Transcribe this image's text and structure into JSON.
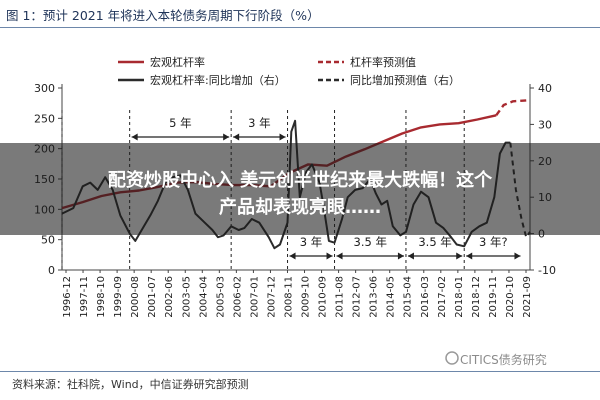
{
  "figure": {
    "title": "图 1：预计 2021 年将进入本轮债务周期下行阶段（%）",
    "source": "资料来源：社科院，Wind，中信证券研究部预测",
    "watermark": "CITICS债务研究",
    "colors": {
      "leverage": "#a82a30",
      "change": "#2b2b2b",
      "band": "#1a1a1a"
    }
  },
  "overlay": {
    "headline_line1": "配资炒股中心入 美元创半世纪来最大跌幅！这个",
    "headline_line2": "产品却表现亮眼……"
  },
  "chart_data": {
    "type": "line",
    "title": "",
    "x_tick_labels": [
      "1996-12",
      "1997-11",
      "1998-10",
      "1999-09",
      "2000-08",
      "2001-07",
      "2002-06",
      "2003-05",
      "2004-04",
      "2005-03",
      "2006-02",
      "2007-01",
      "2007-12",
      "2008-11",
      "2009-10",
      "2010-09",
      "2011-08",
      "2012-07",
      "2013-06",
      "2014-05",
      "2015-04",
      "2016-03",
      "2017-02",
      "2018-01",
      "2018-12",
      "2019-11",
      "2020-10",
      "2021-09"
    ],
    "y_left": {
      "ticks": [
        0,
        50,
        100,
        150,
        200,
        250,
        300
      ],
      "range": [
        0,
        300
      ]
    },
    "y_right": {
      "ticks": [
        -10,
        0,
        10,
        20,
        30,
        40
      ],
      "range": [
        -10,
        40
      ]
    },
    "legend": {
      "placement": "top",
      "entries": [
        {
          "key": "leverage",
          "label": "宏观杠杆率",
          "style": "solid",
          "color": "#a82a30"
        },
        {
          "key": "leverage_forecast",
          "label": "杠杆率预测值",
          "style": "dashed",
          "color": "#a82a30"
        },
        {
          "key": "change",
          "label": "宏观杠杆率:同比增加（右）",
          "style": "solid",
          "color": "#2b2b2b"
        },
        {
          "key": "change_forecast",
          "label": "同比增加预测值（右）",
          "style": "dashed",
          "color": "#2b2b2b"
        }
      ]
    },
    "series": [
      {
        "key": "leverage",
        "name": "宏观杠杆率",
        "axis": "left",
        "points": [
          [
            1996.9,
            102
          ],
          [
            1998.0,
            112
          ],
          [
            1999.0,
            122
          ],
          [
            2000.0,
            128
          ],
          [
            2001.0,
            131
          ],
          [
            2002.0,
            137
          ],
          [
            2003.0,
            144
          ],
          [
            2004.0,
            145
          ],
          [
            2005.0,
            142
          ],
          [
            2006.0,
            140
          ],
          [
            2007.0,
            140
          ],
          [
            2008.0,
            138
          ],
          [
            2009.0,
            160
          ],
          [
            2010.0,
            174
          ],
          [
            2011.0,
            172
          ],
          [
            2012.0,
            187
          ],
          [
            2013.0,
            199
          ],
          [
            2014.0,
            212
          ],
          [
            2015.0,
            225
          ],
          [
            2016.0,
            235
          ],
          [
            2017.0,
            240
          ],
          [
            2018.0,
            242
          ],
          [
            2019.0,
            248
          ],
          [
            2020.0,
            255
          ]
        ]
      },
      {
        "key": "leverage_forecast",
        "name": "杠杆率预测值",
        "axis": "left",
        "points": [
          [
            2020.0,
            255
          ],
          [
            2020.4,
            272
          ],
          [
            2020.9,
            278
          ],
          [
            2021.4,
            279
          ],
          [
            2021.8,
            280
          ]
        ]
      },
      {
        "key": "change",
        "name": "宏观杠杆率:同比增加",
        "axis": "right",
        "points": [
          [
            1996.9,
            5.5
          ],
          [
            1997.5,
            7
          ],
          [
            1998.0,
            13
          ],
          [
            1998.4,
            14
          ],
          [
            1998.8,
            12
          ],
          [
            1999.2,
            15.5
          ],
          [
            1999.6,
            12
          ],
          [
            2000.0,
            5
          ],
          [
            2000.5,
            0
          ],
          [
            2000.8,
            -2
          ],
          [
            2001.2,
            1.5
          ],
          [
            2001.6,
            5
          ],
          [
            2002.0,
            9
          ],
          [
            2002.4,
            14
          ],
          [
            2002.8,
            15.5
          ],
          [
            2003.2,
            16
          ],
          [
            2003.6,
            12
          ],
          [
            2004.0,
            5.5
          ],
          [
            2004.5,
            3
          ],
          [
            2004.9,
            1
          ],
          [
            2005.2,
            -1
          ],
          [
            2005.5,
            -0.5
          ],
          [
            2005.9,
            2
          ],
          [
            2006.3,
            1
          ],
          [
            2006.6,
            1.5
          ],
          [
            2007.0,
            4
          ],
          [
            2007.4,
            3
          ],
          [
            2007.9,
            -1
          ],
          [
            2008.2,
            -4
          ],
          [
            2008.5,
            -3
          ],
          [
            2008.9,
            3
          ],
          [
            2009.1,
            28
          ],
          [
            2009.3,
            31
          ],
          [
            2009.55,
            10
          ],
          [
            2009.9,
            17
          ],
          [
            2010.2,
            19
          ],
          [
            2010.6,
            14
          ],
          [
            2010.8,
            8
          ],
          [
            2011.1,
            -2
          ],
          [
            2011.4,
            -2.5
          ],
          [
            2011.8,
            4
          ],
          [
            2012.1,
            10
          ],
          [
            2012.5,
            12
          ],
          [
            2012.9,
            12.5
          ],
          [
            2013.3,
            15
          ],
          [
            2013.6,
            11
          ],
          [
            2013.9,
            8
          ],
          [
            2014.2,
            9
          ],
          [
            2014.5,
            2
          ],
          [
            2014.9,
            -0.5
          ],
          [
            2015.2,
            0.5
          ],
          [
            2015.6,
            8
          ],
          [
            2016.0,
            11.5
          ],
          [
            2016.4,
            10
          ],
          [
            2016.8,
            3
          ],
          [
            2017.2,
            1.5
          ],
          [
            2017.6,
            -1
          ],
          [
            2017.9,
            -3
          ],
          [
            2018.3,
            -3.5
          ],
          [
            2018.7,
            0.5
          ],
          [
            2019.1,
            2
          ],
          [
            2019.5,
            3
          ],
          [
            2019.9,
            10
          ],
          [
            2020.2,
            22
          ],
          [
            2020.5,
            25
          ],
          [
            2020.75,
            25
          ]
        ]
      },
      {
        "key": "change_forecast",
        "name": "同比增加预测值",
        "axis": "right",
        "points": [
          [
            2020.75,
            25
          ],
          [
            2021.05,
            12
          ],
          [
            2021.35,
            4
          ],
          [
            2021.6,
            -1
          ],
          [
            2021.8,
            0.5
          ]
        ]
      }
    ],
    "vlines": [
      1996.9,
      2000.5,
      2005.9,
      2008.9,
      2011.4,
      2015.2,
      2018.3
    ],
    "annotations": [
      {
        "text": "5 年",
        "from": 2000.5,
        "to": 2005.9,
        "level": "upper"
      },
      {
        "text": "3 年",
        "from": 2005.9,
        "to": 2008.9,
        "level": "upper"
      },
      {
        "text": "3 年",
        "from": 2008.9,
        "to": 2011.4,
        "level": "lower"
      },
      {
        "text": "3.5 年",
        "from": 2011.4,
        "to": 2015.2,
        "level": "lower"
      },
      {
        "text": "3.5 年",
        "from": 2015.2,
        "to": 2018.3,
        "level": "lower"
      },
      {
        "text": "3 年?",
        "from": 2018.3,
        "to": 2021.4,
        "level": "lower"
      }
    ]
  }
}
